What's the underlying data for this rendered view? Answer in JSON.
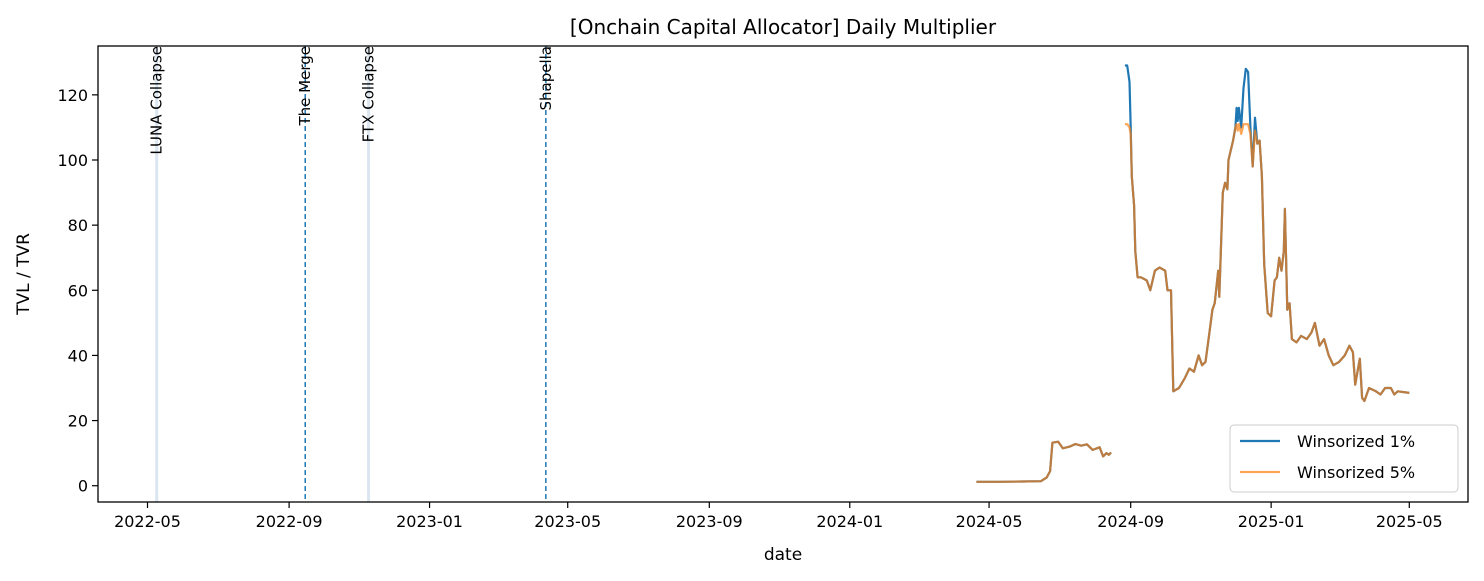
{
  "chart_data": {
    "type": "line",
    "title": "[Onchain Capital Allocator] Daily Multiplier",
    "xlabel": "date",
    "ylabel": "TVL / TVR",
    "x_axis_type": "date",
    "xlim": [
      "2022-03-19",
      "2025-06-21"
    ],
    "ylim": [
      -5,
      135
    ],
    "x_ticks": [
      "2022-05",
      "2022-09",
      "2023-01",
      "2023-05",
      "2023-09",
      "2024-01",
      "2024-05",
      "2024-09",
      "2025-01",
      "2025-05"
    ],
    "y_ticks": [
      0,
      20,
      40,
      60,
      80,
      100,
      120
    ],
    "grid": false,
    "legend_position": "lower-right",
    "series_colors": [
      "#1f77b4",
      "#ff7f0e"
    ],
    "events": [
      {
        "label": "LUNA Collapse",
        "date": "2022-05-09",
        "style": "solid-faint"
      },
      {
        "label": "The Merge",
        "date": "2022-09-15",
        "style": "dashed"
      },
      {
        "label": "FTX Collapse",
        "date": "2022-11-09",
        "style": "solid-faint"
      },
      {
        "label": "Shapella",
        "date": "2023-04-12",
        "style": "dashed"
      }
    ],
    "series": [
      {
        "name": "Winsorized 1%",
        "points": [
          [
            "2024-04-20",
            1.2
          ],
          [
            "2024-05-10",
            1.2
          ],
          [
            "2024-05-30",
            1.3
          ],
          [
            "2024-06-15",
            1.4
          ],
          [
            "2024-06-20",
            2.5
          ],
          [
            "2024-06-23",
            4.5
          ],
          [
            "2024-06-25",
            13.2
          ],
          [
            "2024-06-30",
            13.5
          ],
          [
            "2024-07-04",
            11.5
          ],
          [
            "2024-07-10",
            12.0
          ],
          [
            "2024-07-15",
            12.8
          ],
          [
            "2024-07-20",
            12.3
          ],
          [
            "2024-07-25",
            12.7
          ],
          [
            "2024-07-30",
            11.0
          ],
          [
            "2024-08-05",
            11.8
          ],
          [
            "2024-08-08",
            9.0
          ],
          [
            "2024-08-11",
            10.0
          ],
          [
            "2024-08-13",
            9.5
          ],
          [
            "2024-08-15",
            10.2
          ],
          null,
          [
            "2024-08-27",
            129
          ],
          [
            "2024-08-29",
            129
          ],
          [
            "2024-08-31",
            124
          ],
          [
            "2024-09-01",
            110
          ],
          [
            "2024-09-02",
            95
          ],
          [
            "2024-09-04",
            86
          ],
          [
            "2024-09-05",
            72
          ],
          [
            "2024-09-07",
            64
          ],
          [
            "2024-09-10",
            64
          ],
          [
            "2024-09-15",
            63
          ],
          [
            "2024-09-18",
            60
          ],
          [
            "2024-09-22",
            66
          ],
          [
            "2024-09-26",
            67
          ],
          [
            "2024-10-01",
            66
          ],
          [
            "2024-10-03",
            60
          ],
          [
            "2024-10-06",
            60
          ],
          [
            "2024-10-08",
            29
          ],
          [
            "2024-10-13",
            30
          ],
          [
            "2024-10-18",
            33
          ],
          [
            "2024-10-22",
            36
          ],
          [
            "2024-10-26",
            35
          ],
          [
            "2024-10-30",
            40
          ],
          [
            "2024-11-02",
            37
          ],
          [
            "2024-11-05",
            38
          ],
          [
            "2024-11-08",
            46
          ],
          [
            "2024-11-11",
            54
          ],
          [
            "2024-11-13",
            56
          ],
          [
            "2024-11-16",
            66
          ],
          [
            "2024-11-17",
            58
          ],
          [
            "2024-11-20",
            90
          ],
          [
            "2024-11-22",
            93
          ],
          [
            "2024-11-24",
            91
          ],
          [
            "2024-11-25",
            100
          ],
          [
            "2024-11-27",
            103
          ],
          [
            "2024-11-29",
            106
          ],
          [
            "2024-12-01",
            110
          ],
          [
            "2024-12-02",
            116
          ],
          [
            "2024-12-03",
            112
          ],
          [
            "2024-12-04",
            116
          ],
          [
            "2024-12-06",
            110
          ],
          [
            "2024-12-08",
            122
          ],
          [
            "2024-12-10",
            128
          ],
          [
            "2024-12-12",
            127
          ],
          [
            "2024-12-14",
            110
          ],
          [
            "2024-12-16",
            98
          ],
          [
            "2024-12-18",
            113
          ],
          [
            "2024-12-20",
            105
          ],
          [
            "2024-12-22",
            106
          ],
          [
            "2024-12-24",
            95
          ],
          [
            "2024-12-26",
            68
          ],
          [
            "2024-12-29",
            53
          ],
          [
            "2025-01-01",
            52
          ],
          [
            "2025-01-04",
            63
          ],
          [
            "2025-01-06",
            64
          ],
          [
            "2025-01-08",
            70
          ],
          [
            "2025-01-10",
            66
          ],
          [
            "2025-01-12",
            72
          ],
          [
            "2025-01-13",
            85
          ],
          [
            "2025-01-15",
            54
          ],
          [
            "2025-01-17",
            56
          ],
          [
            "2025-01-19",
            45
          ],
          [
            "2025-01-23",
            44
          ],
          [
            "2025-01-27",
            46
          ],
          [
            "2025-02-01",
            45
          ],
          [
            "2025-02-05",
            47
          ],
          [
            "2025-02-08",
            50
          ],
          [
            "2025-02-12",
            43
          ],
          [
            "2025-02-16",
            45
          ],
          [
            "2025-02-20",
            40
          ],
          [
            "2025-02-24",
            37
          ],
          [
            "2025-03-01",
            38
          ],
          [
            "2025-03-06",
            40
          ],
          [
            "2025-03-10",
            43
          ],
          [
            "2025-03-13",
            41
          ],
          [
            "2025-03-15",
            31
          ],
          [
            "2025-03-17",
            35
          ],
          [
            "2025-03-19",
            39
          ],
          [
            "2025-03-21",
            27
          ],
          [
            "2025-03-23",
            26
          ],
          [
            "2025-03-27",
            30
          ],
          [
            "2025-04-02",
            29
          ],
          [
            "2025-04-06",
            28
          ],
          [
            "2025-04-10",
            30
          ],
          [
            "2025-04-15",
            30
          ],
          [
            "2025-04-18",
            28
          ],
          [
            "2025-04-21",
            29
          ],
          [
            "2025-05-01",
            28.5
          ]
        ]
      },
      {
        "name": "Winsorized 5%",
        "points": [
          [
            "2024-04-20",
            1.2
          ],
          [
            "2024-05-10",
            1.2
          ],
          [
            "2024-05-30",
            1.3
          ],
          [
            "2024-06-15",
            1.4
          ],
          [
            "2024-06-20",
            2.5
          ],
          [
            "2024-06-23",
            4.5
          ],
          [
            "2024-06-25",
            13.2
          ],
          [
            "2024-06-30",
            13.5
          ],
          [
            "2024-07-04",
            11.5
          ],
          [
            "2024-07-10",
            12.0
          ],
          [
            "2024-07-15",
            12.8
          ],
          [
            "2024-07-20",
            12.3
          ],
          [
            "2024-07-25",
            12.7
          ],
          [
            "2024-07-30",
            11.0
          ],
          [
            "2024-08-05",
            11.8
          ],
          [
            "2024-08-08",
            9.0
          ],
          [
            "2024-08-11",
            10.0
          ],
          [
            "2024-08-13",
            9.5
          ],
          [
            "2024-08-15",
            10.2
          ],
          null,
          [
            "2024-08-27",
            111
          ],
          [
            "2024-08-29",
            111
          ],
          [
            "2024-08-31",
            110
          ],
          [
            "2024-09-01",
            108
          ],
          [
            "2024-09-02",
            95
          ],
          [
            "2024-09-04",
            86
          ],
          [
            "2024-09-05",
            72
          ],
          [
            "2024-09-07",
            64
          ],
          [
            "2024-09-10",
            64
          ],
          [
            "2024-09-15",
            63
          ],
          [
            "2024-09-18",
            60
          ],
          [
            "2024-09-22",
            66
          ],
          [
            "2024-09-26",
            67
          ],
          [
            "2024-10-01",
            66
          ],
          [
            "2024-10-03",
            60
          ],
          [
            "2024-10-06",
            60
          ],
          [
            "2024-10-08",
            29
          ],
          [
            "2024-10-13",
            30
          ],
          [
            "2024-10-18",
            33
          ],
          [
            "2024-10-22",
            36
          ],
          [
            "2024-10-26",
            35
          ],
          [
            "2024-10-30",
            40
          ],
          [
            "2024-11-02",
            37
          ],
          [
            "2024-11-05",
            38
          ],
          [
            "2024-11-08",
            46
          ],
          [
            "2024-11-11",
            54
          ],
          [
            "2024-11-13",
            56
          ],
          [
            "2024-11-16",
            66
          ],
          [
            "2024-11-17",
            58
          ],
          [
            "2024-11-20",
            90
          ],
          [
            "2024-11-22",
            93
          ],
          [
            "2024-11-24",
            91
          ],
          [
            "2024-11-25",
            100
          ],
          [
            "2024-11-27",
            103
          ],
          [
            "2024-11-29",
            106
          ],
          [
            "2024-12-01",
            110
          ],
          [
            "2024-12-02",
            111
          ],
          [
            "2024-12-03",
            109
          ],
          [
            "2024-12-04",
            111
          ],
          [
            "2024-12-06",
            108
          ],
          [
            "2024-12-08",
            111
          ],
          [
            "2024-12-10",
            111
          ],
          [
            "2024-12-12",
            111
          ],
          [
            "2024-12-14",
            108
          ],
          [
            "2024-12-16",
            98
          ],
          [
            "2024-12-18",
            109
          ],
          [
            "2024-12-20",
            105
          ],
          [
            "2024-12-22",
            106
          ],
          [
            "2024-12-24",
            95
          ],
          [
            "2024-12-26",
            68
          ],
          [
            "2024-12-29",
            53
          ],
          [
            "2025-01-01",
            52
          ],
          [
            "2025-01-04",
            63
          ],
          [
            "2025-01-06",
            64
          ],
          [
            "2025-01-08",
            70
          ],
          [
            "2025-01-10",
            66
          ],
          [
            "2025-01-12",
            72
          ],
          [
            "2025-01-13",
            85
          ],
          [
            "2025-01-15",
            54
          ],
          [
            "2025-01-17",
            56
          ],
          [
            "2025-01-19",
            45
          ],
          [
            "2025-01-23",
            44
          ],
          [
            "2025-01-27",
            46
          ],
          [
            "2025-02-01",
            45
          ],
          [
            "2025-02-05",
            47
          ],
          [
            "2025-02-08",
            50
          ],
          [
            "2025-02-12",
            43
          ],
          [
            "2025-02-16",
            45
          ],
          [
            "2025-02-20",
            40
          ],
          [
            "2025-02-24",
            37
          ],
          [
            "2025-03-01",
            38
          ],
          [
            "2025-03-06",
            40
          ],
          [
            "2025-03-10",
            43
          ],
          [
            "2025-03-13",
            41
          ],
          [
            "2025-03-15",
            31
          ],
          [
            "2025-03-17",
            35
          ],
          [
            "2025-03-19",
            39
          ],
          [
            "2025-03-21",
            27
          ],
          [
            "2025-03-23",
            26
          ],
          [
            "2025-03-27",
            30
          ],
          [
            "2025-04-02",
            29
          ],
          [
            "2025-04-06",
            28
          ],
          [
            "2025-04-10",
            30
          ],
          [
            "2025-04-15",
            30
          ],
          [
            "2025-04-18",
            28
          ],
          [
            "2025-04-21",
            29
          ],
          [
            "2025-05-01",
            28.5
          ]
        ]
      }
    ]
  }
}
